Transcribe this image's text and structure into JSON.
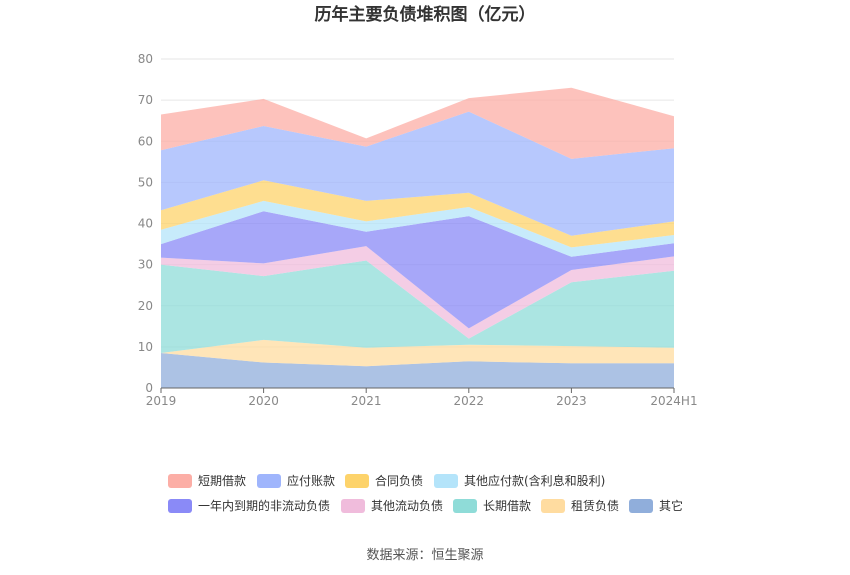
{
  "chart_data": {
    "type": "area",
    "stacked": true,
    "title": "历年主要负债堆积图（亿元）",
    "xlabel": "",
    "ylabel": "",
    "ylim": [
      0,
      80
    ],
    "yticks": [
      0,
      10,
      20,
      30,
      40,
      50,
      60,
      70,
      80
    ],
    "grid": true,
    "legend_position": "bottom",
    "categories": [
      "2019",
      "2020",
      "2021",
      "2022",
      "2023",
      "2024H1"
    ],
    "series": [
      {
        "name": "其它",
        "color": "#90aedb",
        "values": [
          8.5,
          6.2,
          5.3,
          6.5,
          6.0,
          6.0
        ]
      },
      {
        "name": "租赁负债",
        "color": "#ffdca0",
        "values": [
          0.0,
          5.5,
          4.5,
          4.0,
          4.2,
          3.8
        ]
      },
      {
        "name": "长期借款",
        "color": "#8fdcd8",
        "values": [
          21.5,
          15.5,
          21.2,
          1.5,
          15.5,
          18.7
        ]
      },
      {
        "name": "其他流动负债",
        "color": "#f0bcdc",
        "values": [
          1.7,
          3.1,
          3.5,
          2.5,
          3.0,
          3.5
        ]
      },
      {
        "name": "一年内到期的非流动负债",
        "color": "#8a8af7",
        "values": [
          3.3,
          12.7,
          3.5,
          27.3,
          3.2,
          3.2
        ]
      },
      {
        "name": "其他应付款(含利息和股利)",
        "color": "#b4e4fa",
        "values": [
          3.5,
          2.5,
          2.5,
          2.2,
          2.3,
          2.0
        ]
      },
      {
        "name": "合同负债",
        "color": "#fdd36b",
        "values": [
          4.7,
          5.0,
          5.0,
          3.5,
          2.8,
          3.3
        ]
      },
      {
        "name": "应付账款",
        "color": "#9fb5fc",
        "values": [
          14.6,
          13.2,
          13.2,
          19.7,
          18.7,
          17.8
        ]
      },
      {
        "name": "短期借款",
        "color": "#fcaea6",
        "values": [
          8.7,
          6.6,
          2.0,
          3.3,
          17.3,
          7.8
        ]
      }
    ],
    "legend_order": [
      "短期借款",
      "应付账款",
      "合同负债",
      "其他应付款(含利息和股利)",
      "一年内到期的非流动负债",
      "其他流动负债",
      "长期借款",
      "租赁负债",
      "其它"
    ]
  },
  "source_text": "数据来源：恒生聚源"
}
